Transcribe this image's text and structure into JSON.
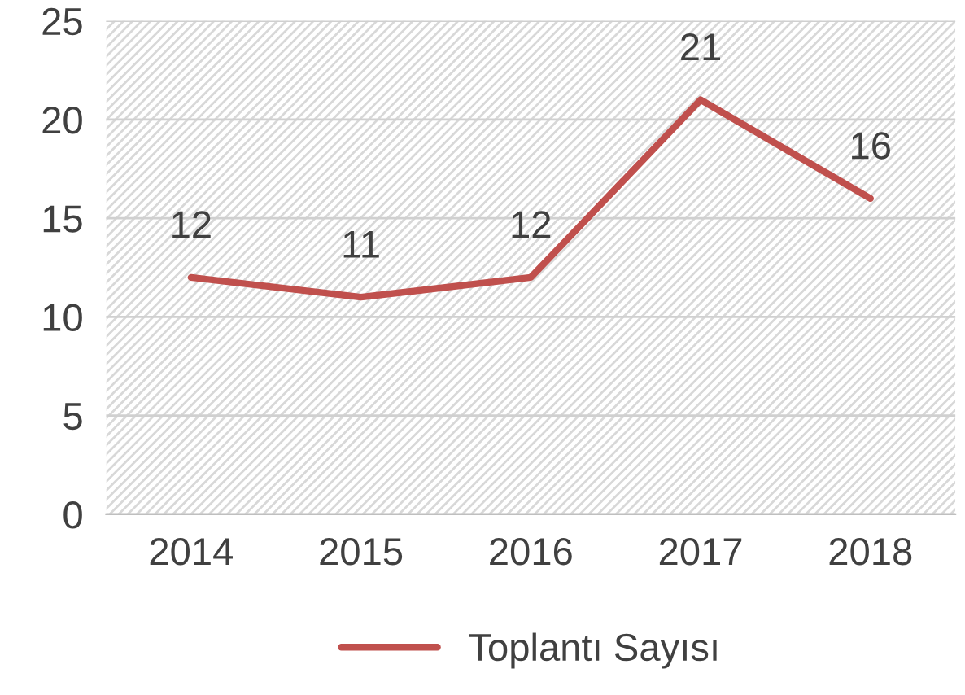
{
  "chart_data": {
    "type": "line",
    "categories": [
      "2014",
      "2015",
      "2016",
      "2017",
      "2018"
    ],
    "series": [
      {
        "name": "Toplantı Sayısı",
        "color": "#c0504d",
        "values": [
          12,
          11,
          12,
          21,
          16
        ]
      }
    ],
    "ylim": [
      0,
      25
    ],
    "yticks": [
      0,
      5,
      10,
      15,
      20,
      25
    ],
    "grid": "y",
    "legend": "bottom",
    "data_labels": true,
    "marker": "none",
    "line_style": "solid"
  }
}
